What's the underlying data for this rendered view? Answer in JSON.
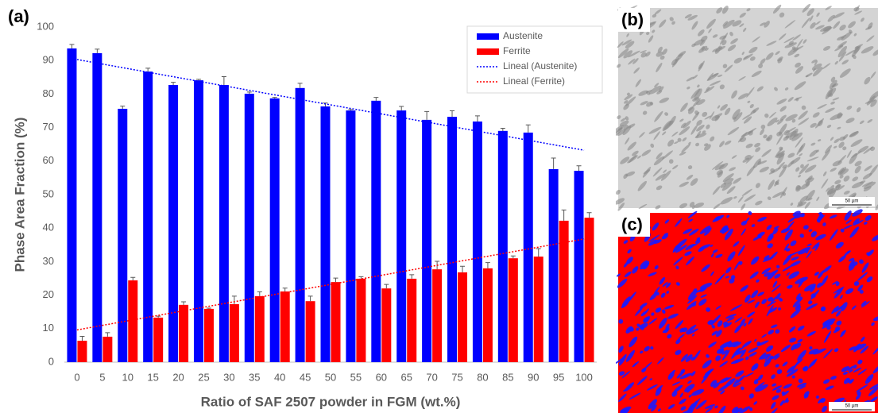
{
  "chart_data": {
    "type": "bar",
    "panel_label": "(a)",
    "xlabel": "Ratio of SAF 2507 powder in FGM (wt.%)",
    "ylabel": "Phase Area Fraction (%)",
    "categories": [
      "0",
      "5",
      "10",
      "15",
      "20",
      "25",
      "30",
      "35",
      "40",
      "45",
      "50",
      "55",
      "60",
      "65",
      "70",
      "75",
      "80",
      "85",
      "90",
      "95",
      "100"
    ],
    "series": [
      {
        "name": "Austenite",
        "color": "#0000ff",
        "trend_name": "Lineal (Austenite)",
        "values": [
          93.6,
          92.2,
          75.6,
          86.7,
          82.7,
          84.1,
          82.7,
          80.1,
          78.7,
          81.8,
          76.3,
          75.1,
          78.0,
          75.1,
          72.3,
          73.2,
          71.8,
          69.0,
          68.5,
          57.6,
          57.1
        ],
        "errors": [
          1.2,
          1.2,
          0.8,
          1.0,
          0.8,
          0.3,
          2.5,
          0.5,
          0.3,
          1.4,
          1.0,
          0.3,
          1.0,
          1.2,
          2.5,
          1.8,
          1.7,
          0.8,
          2.3,
          3.3,
          1.5
        ]
      },
      {
        "name": "Ferrite",
        "color": "#ff0000",
        "trend_name": "Lineal (Ferrite)",
        "values": [
          6.4,
          7.6,
          24.4,
          13.3,
          17.1,
          15.9,
          17.3,
          19.7,
          21.1,
          18.2,
          23.9,
          24.9,
          22.0,
          24.9,
          27.7,
          26.8,
          28.0,
          31.0,
          31.5,
          42.2,
          43.1
        ],
        "errors": [
          1.3,
          1.2,
          0.9,
          0.4,
          0.9,
          0.2,
          2.4,
          1.3,
          1.0,
          1.5,
          1.2,
          0.6,
          1.2,
          1.2,
          2.4,
          1.8,
          1.7,
          0.7,
          2.4,
          3.2,
          1.5
        ]
      }
    ],
    "ylim": [
      0,
      100
    ],
    "yticks": [
      0,
      10,
      20,
      30,
      40,
      50,
      60,
      70,
      80,
      90,
      100
    ],
    "grid": false,
    "legend": "top-right"
  },
  "micrographs": [
    {
      "label": "(b)",
      "scale_bar": "50 µm",
      "style": "grey"
    },
    {
      "label": "(c)",
      "scale_bar": "50 µm",
      "style": "color"
    }
  ]
}
